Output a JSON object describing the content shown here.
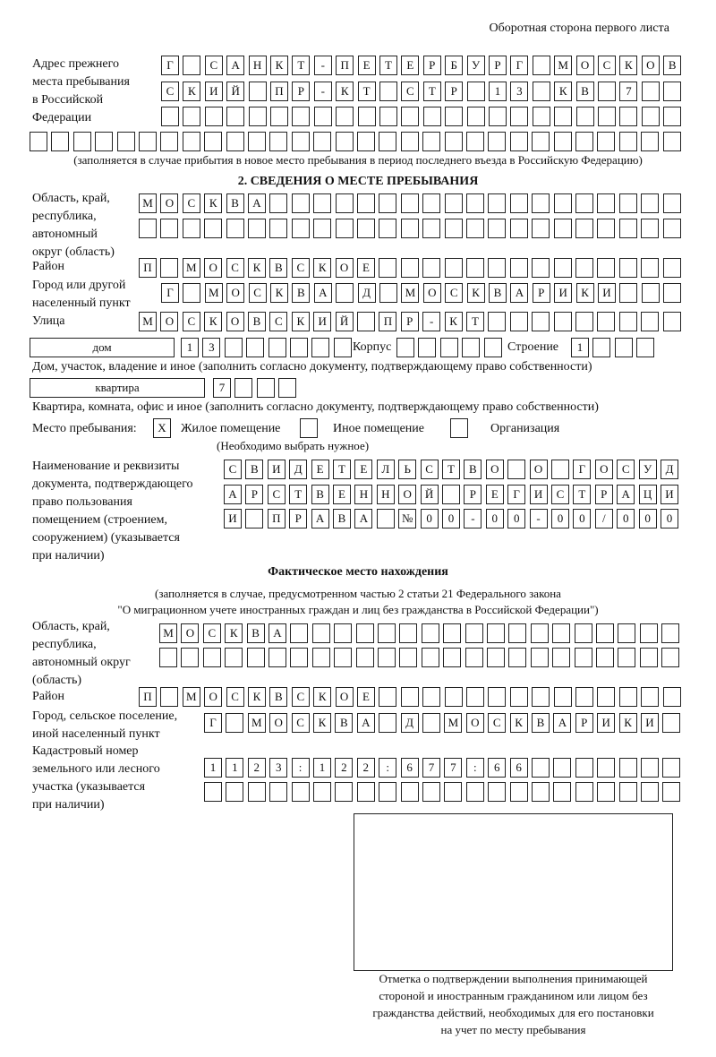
{
  "header": "Оборотная сторона первого листа",
  "prev_address": {
    "label": "Адрес прежнего\nместа пребывания\nв Российской\nФедерации",
    "rows": [
      [
        "Г",
        "",
        "С",
        "А",
        "Н",
        "К",
        "Т",
        "-",
        "П",
        "Е",
        "Т",
        "Е",
        "Р",
        "Б",
        "У",
        "Р",
        "Г",
        "",
        "М",
        "О",
        "С",
        "К",
        "О",
        "В"
      ],
      [
        "С",
        "К",
        "И",
        "Й",
        "",
        "П",
        "Р",
        "-",
        "К",
        "Т",
        "",
        "С",
        "Т",
        "Р",
        "",
        "1",
        "3",
        "",
        "К",
        "В",
        "",
        "7",
        "",
        ""
      ],
      [
        "",
        "",
        "",
        "",
        "",
        "",
        "",
        "",
        "",
        "",
        "",
        "",
        "",
        "",
        "",
        "",
        "",
        "",
        "",
        "",
        "",
        "",
        "",
        ""
      ],
      [
        "",
        "",
        "",
        "",
        "",
        "",
        "",
        "",
        "",
        "",
        "",
        "",
        "",
        "",
        "",
        "",
        "",
        "",
        "",
        "",
        "",
        "",
        "",
        "",
        "",
        "",
        "",
        "",
        "",
        ""
      ]
    ],
    "note": "(заполняется в случае прибытия в новое место пребывания в период последнего въезда в Российскую Федерацию)"
  },
  "section2": {
    "title": "2. СВЕДЕНИЯ О МЕСТЕ ПРЕБЫВАНИЯ",
    "region_label": "Область, край,\nреспублика,\nавтономный\nокруг (область)",
    "region_rows": [
      [
        "М",
        "О",
        "С",
        "К",
        "В",
        "А",
        "",
        "",
        "",
        "",
        "",
        "",
        "",
        "",
        "",
        "",
        "",
        "",
        "",
        "",
        "",
        "",
        "",
        "",
        ""
      ],
      [
        "",
        "",
        "",
        "",
        "",
        "",
        "",
        "",
        "",
        "",
        "",
        "",
        "",
        "",
        "",
        "",
        "",
        "",
        "",
        "",
        "",
        "",
        "",
        "",
        ""
      ]
    ],
    "district_label": "Район",
    "district": [
      "П",
      "",
      "М",
      "О",
      "С",
      "К",
      "В",
      "С",
      "К",
      "О",
      "Е",
      "",
      "",
      "",
      "",
      "",
      "",
      "",
      "",
      "",
      "",
      "",
      "",
      "",
      ""
    ],
    "city_label": "Город или другой\nнаселенный пункт",
    "city": [
      "Г",
      "",
      "М",
      "О",
      "С",
      "К",
      "В",
      "А",
      "",
      "Д",
      "",
      "М",
      "О",
      "С",
      "К",
      "В",
      "А",
      "Р",
      "И",
      "К",
      "И",
      "",
      "",
      ""
    ],
    "street_label": "Улица",
    "street": [
      "М",
      "О",
      "С",
      "К",
      "О",
      "В",
      "С",
      "К",
      "И",
      "Й",
      "",
      "П",
      "Р",
      "-",
      "К",
      "Т",
      "",
      "",
      "",
      "",
      "",
      "",
      "",
      "",
      ""
    ],
    "house_type": "дом",
    "house": [
      "1",
      "3",
      "",
      "",
      "",
      "",
      "",
      ""
    ],
    "korpus_label": "Корпус",
    "korpus": [
      "",
      "",
      "",
      "",
      ""
    ],
    "building_label": "Строение",
    "building": [
      "1",
      "",
      "",
      ""
    ],
    "house_note": "Дом, участок, владение и иное (заполнить согласно документу, подтверждающему право собственности)",
    "flat_type": "квартира",
    "flat": [
      "7",
      "",
      "",
      ""
    ],
    "flat_note": "Квартира, комната, офис и иное (заполнить согласно документу, подтверждающему право собственности)",
    "stay_label": "Место пребывания:",
    "stay_options": [
      {
        "label": "Жилое помещение",
        "mark": "X"
      },
      {
        "label": "Иное помещение",
        "mark": ""
      },
      {
        "label": "Организация",
        "mark": ""
      }
    ],
    "stay_note": "(Необходимо выбрать нужное)",
    "doc_label": "Наименование и реквизиты\nдокумента, подтверждающего\nправо пользования\nпомещением (строением,\nсооружением) (указывается\nпри наличии)",
    "doc_rows": [
      [
        "С",
        "В",
        "И",
        "Д",
        "Е",
        "Т",
        "Е",
        "Л",
        "Ь",
        "С",
        "Т",
        "В",
        "О",
        "",
        "О",
        "",
        "Г",
        "О",
        "С",
        "У",
        "Д"
      ],
      [
        "А",
        "Р",
        "С",
        "Т",
        "В",
        "Е",
        "Н",
        "Н",
        "О",
        "Й",
        "",
        "Р",
        "Е",
        "Г",
        "И",
        "С",
        "Т",
        "Р",
        "А",
        "Ц",
        "И"
      ],
      [
        "И",
        "",
        "П",
        "Р",
        "А",
        "В",
        "А",
        "",
        "№",
        "0",
        "0",
        "-",
        "0",
        "0",
        "-",
        "0",
        "0",
        "/",
        "0",
        "0",
        "0"
      ]
    ]
  },
  "actual": {
    "title": "Фактическое место нахождения",
    "note1": "(заполняется в случае, предусмотренном частью 2 статьи 21 Федерального закона",
    "note2": "\"О миграционном учете иностранных граждан и лиц без гражданства в Российской Федерации\")",
    "region_label": "Область, край,\nреспублика,\nавтономный округ\n(область)",
    "region_rows": [
      [
        "М",
        "О",
        "С",
        "К",
        "В",
        "А",
        "",
        "",
        "",
        "",
        "",
        "",
        "",
        "",
        "",
        "",
        "",
        "",
        "",
        "",
        "",
        "",
        "",
        ""
      ],
      [
        "",
        "",
        "",
        "",
        "",
        "",
        "",
        "",
        "",
        "",
        "",
        "",
        "",
        "",
        "",
        "",
        "",
        "",
        "",
        "",
        "",
        "",
        "",
        ""
      ]
    ],
    "district_label": "Район",
    "district": [
      "П",
      "",
      "М",
      "О",
      "С",
      "К",
      "В",
      "С",
      "К",
      "О",
      "Е",
      "",
      "",
      "",
      "",
      "",
      "",
      "",
      "",
      "",
      "",
      "",
      "",
      "",
      ""
    ],
    "city_label": "Город, сельское поселение,\nиной населенный пункт",
    "city": [
      "Г",
      "",
      "М",
      "О",
      "С",
      "К",
      "В",
      "А",
      "",
      "Д",
      "",
      "М",
      "О",
      "С",
      "К",
      "В",
      "А",
      "Р",
      "И",
      "К",
      "И",
      ""
    ],
    "cadastral_label": "Кадастровый номер\nземельного или лесного\nучастка (указывается\nпри наличии)",
    "cadastral_rows": [
      [
        "1",
        "1",
        "2",
        "3",
        ":",
        "1",
        "2",
        "2",
        ":",
        "6",
        "7",
        "7",
        ":",
        "6",
        "6",
        "",
        "",
        "",
        "",
        "",
        "",
        ""
      ],
      [
        "",
        "",
        "",
        "",
        "",
        "",
        "",
        "",
        "",
        "",
        "",
        "",
        "",
        "",
        "",
        "",
        "",
        "",
        "",
        "",
        "",
        ""
      ]
    ]
  },
  "stamp_caption": "Отметка о подтверждении выполнения принимающей\nстороной и иностранным гражданином или лицом без\nгражданства действий, необходимых для его постановки\nна учет по месту пребывания"
}
